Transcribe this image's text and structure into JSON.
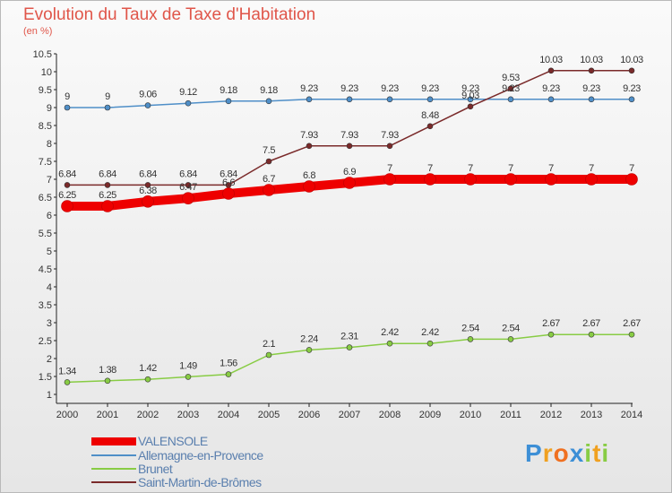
{
  "chart_data": {
    "type": "line",
    "title": "Evolution du Taux de Taxe d'Habitation",
    "unit_label": "(en %)",
    "x": [
      "2000",
      "2001",
      "2002",
      "2003",
      "2004",
      "2005",
      "2006",
      "2007",
      "2008",
      "2009",
      "2010",
      "2011",
      "2012",
      "2013",
      "2014"
    ],
    "yticks": [
      "1",
      "1.5",
      "2",
      "2.5",
      "3",
      "3.5",
      "4",
      "4.5",
      "5",
      "5.5",
      "6",
      "6.5",
      "7",
      "7.5",
      "8",
      "8.5",
      "9",
      "9.5",
      "10",
      "10.5"
    ],
    "ylim": [
      1,
      10.5
    ],
    "grid": false,
    "legend_position": "bottom-left",
    "series": [
      {
        "name": "VALENSOLE",
        "color": "#ee0000",
        "line_width": 10,
        "values": [
          6.25,
          6.25,
          6.38,
          6.47,
          6.6,
          6.7,
          6.8,
          6.9,
          7,
          7,
          7,
          7,
          7,
          7,
          7
        ],
        "labels": [
          "6.25",
          "6.25",
          "6.38",
          "6.47",
          "6.6",
          "6.7",
          "6.8",
          "6.9",
          "7",
          "7",
          "7",
          "7",
          "7",
          "7",
          "7"
        ]
      },
      {
        "name": "Allemagne-en-Provence",
        "color": "#4f8fc8",
        "line_width": 1.5,
        "values": [
          9,
          9,
          9.06,
          9.12,
          9.18,
          9.18,
          9.23,
          9.23,
          9.23,
          9.23,
          9.23,
          9.23,
          9.23,
          9.23,
          9.23
        ],
        "labels": [
          "9",
          "9",
          "9.06",
          "9.12",
          "9.18",
          "9.18",
          "9.23",
          "9.23",
          "9.23",
          "9.23",
          "9.23",
          "9.23",
          "9.23",
          "9.23",
          "9.23"
        ]
      },
      {
        "name": "Brunet",
        "color": "#88cc44",
        "line_width": 1.5,
        "values": [
          1.34,
          1.38,
          1.42,
          1.49,
          1.56,
          2.1,
          2.24,
          2.31,
          2.42,
          2.42,
          2.54,
          2.54,
          2.67,
          2.67,
          2.67
        ],
        "labels": [
          "1.34",
          "1.38",
          "1.42",
          "1.49",
          "1.56",
          "2.1",
          "2.24",
          "2.31",
          "2.42",
          "2.42",
          "2.54",
          "2.54",
          "2.67",
          "2.67",
          "2.67"
        ]
      },
      {
        "name": "Saint-Martin-de-Brômes",
        "color": "#7a2a2a",
        "line_width": 1.5,
        "values": [
          6.84,
          6.84,
          6.84,
          6.84,
          6.84,
          7.5,
          7.93,
          7.93,
          7.93,
          8.48,
          9.03,
          9.53,
          10.03,
          10.03,
          10.03
        ],
        "labels": [
          "6.84",
          "6.84",
          "6.84",
          "6.84",
          "6.84",
          "7.5",
          "7.93",
          "7.93",
          "7.93",
          "8.48",
          "9.03",
          "9.53",
          "10.03",
          "10.03",
          "10.03"
        ]
      }
    ]
  },
  "logo": {
    "text": "Proxiti",
    "letters": [
      "P",
      "r",
      "o",
      "x",
      "i",
      "t",
      "i"
    ],
    "colors": [
      "#3d8fd6",
      "#f0a020",
      "#f07020",
      "#3d8fd6",
      "#88cc44",
      "#f0a020",
      "#88cc44"
    ]
  }
}
